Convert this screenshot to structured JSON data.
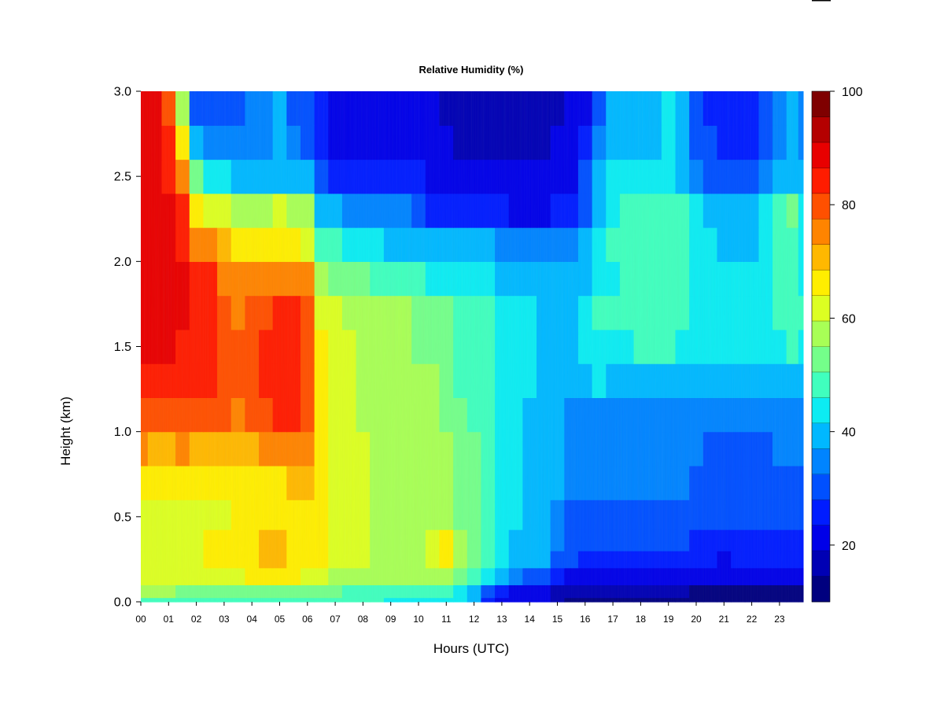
{
  "chart_data": {
    "type": "heatmap",
    "title": "Relative Humidity (%)",
    "xlabel": "Hours (UTC)",
    "ylabel": "Height (km)",
    "xlim": [
      0,
      23.85
    ],
    "ylim": [
      0,
      3
    ],
    "x_tick_labels": [
      "00",
      "01",
      "02",
      "03",
      "04",
      "05",
      "06",
      "07",
      "08",
      "09",
      "10",
      "11",
      "12",
      "13",
      "14",
      "15",
      "16",
      "17",
      "18",
      "19",
      "20",
      "21",
      "22",
      "23"
    ],
    "y_tick_labels": [
      "0.0",
      "0.5",
      "1.0",
      "1.5",
      "2.0",
      "2.5",
      "3.0"
    ],
    "colorbar": {
      "min": 10,
      "max": 100,
      "step": 5,
      "tick_labels": [
        "20",
        "40",
        "60",
        "80",
        "100"
      ],
      "colors": [
        "#00007F",
        "#0000B4",
        "#0000E8",
        "#001CFF",
        "#0050FF",
        "#0084FF",
        "#00B8FF",
        "#0CECF2",
        "#40FFBE",
        "#74FF8A",
        "#A8FF56",
        "#DCFF22",
        "#FFEE00",
        "#FFB800",
        "#FF8400",
        "#FF5000",
        "#FF1C00",
        "#E80000",
        "#B40000",
        "#7F0000"
      ]
    },
    "rows_height_km": [
      0.0,
      0.05,
      0.15,
      0.25,
      0.35,
      0.5,
      0.7,
      0.9,
      1.1,
      1.3,
      1.5,
      1.7,
      1.9,
      2.1,
      2.3,
      2.5,
      2.7,
      2.9,
      3.0
    ],
    "cols_hour": [
      0,
      0.5,
      1,
      1.5,
      2,
      2.5,
      3,
      3.5,
      4,
      4.5,
      5,
      5.5,
      6,
      6.5,
      7,
      7.5,
      8,
      8.5,
      9,
      9.5,
      10,
      10.5,
      11,
      11.5,
      12,
      12.5,
      13,
      13.5,
      14,
      14.5,
      15,
      15.5,
      16,
      16.5,
      17,
      17.5,
      18,
      18.5,
      19,
      19.5,
      20,
      20.5,
      21,
      21.5,
      22,
      22.5,
      23,
      23.5,
      23.85
    ],
    "values_rh_percent": [
      [
        52,
        52,
        52,
        52,
        52,
        52,
        52,
        52,
        50,
        50,
        52,
        52,
        52,
        52,
        52,
        52,
        50,
        50,
        48,
        48,
        48,
        48,
        48,
        46,
        40,
        28,
        22,
        20,
        20,
        20,
        16,
        14,
        14,
        14,
        14,
        14,
        14,
        14,
        14,
        14,
        12,
        12,
        12,
        12,
        12,
        12,
        12,
        12,
        12
      ],
      [
        60,
        60,
        60,
        58,
        58,
        58,
        58,
        58,
        56,
        56,
        56,
        56,
        56,
        56,
        56,
        54,
        54,
        52,
        52,
        50,
        50,
        50,
        50,
        48,
        42,
        30,
        26,
        24,
        24,
        24,
        18,
        16,
        16,
        16,
        16,
        16,
        16,
        16,
        16,
        16,
        14,
        14,
        14,
        14,
        14,
        14,
        14,
        14,
        14
      ],
      [
        66,
        66,
        66,
        66,
        66,
        66,
        66,
        68,
        70,
        70,
        70,
        70,
        68,
        66,
        64,
        62,
        62,
        60,
        60,
        60,
        60,
        62,
        62,
        56,
        50,
        46,
        40,
        36,
        34,
        32,
        28,
        24,
        22,
        22,
        22,
        20,
        22,
        22,
        22,
        22,
        20,
        20,
        20,
        20,
        22,
        22,
        22,
        22,
        22
      ],
      [
        68,
        68,
        68,
        68,
        68,
        70,
        70,
        72,
        74,
        76,
        76,
        74,
        72,
        70,
        68,
        66,
        66,
        64,
        62,
        62,
        64,
        66,
        72,
        60,
        56,
        52,
        48,
        44,
        42,
        40,
        34,
        30,
        28,
        28,
        28,
        28,
        28,
        28,
        28,
        28,
        26,
        26,
        24,
        26,
        26,
        26,
        26,
        26,
        26
      ],
      [
        68,
        68,
        68,
        68,
        68,
        70,
        70,
        72,
        74,
        76,
        76,
        74,
        74,
        70,
        68,
        66,
        66,
        64,
        62,
        62,
        62,
        66,
        70,
        60,
        56,
        52,
        48,
        44,
        42,
        40,
        36,
        32,
        30,
        30,
        30,
        30,
        30,
        30,
        30,
        30,
        28,
        28,
        26,
        28,
        28,
        28,
        28,
        28,
        28
      ],
      [
        68,
        68,
        68,
        68,
        68,
        68,
        68,
        70,
        70,
        72,
        72,
        72,
        72,
        70,
        66,
        66,
        66,
        64,
        62,
        62,
        62,
        62,
        64,
        58,
        56,
        52,
        48,
        46,
        44,
        42,
        38,
        34,
        34,
        34,
        34,
        34,
        34,
        34,
        34,
        34,
        32,
        30,
        30,
        32,
        32,
        32,
        32,
        32,
        32
      ],
      [
        70,
        70,
        72,
        72,
        72,
        72,
        70,
        72,
        72,
        74,
        74,
        76,
        76,
        72,
        68,
        66,
        66,
        64,
        62,
        62,
        60,
        60,
        60,
        56,
        56,
        52,
        48,
        46,
        44,
        44,
        40,
        36,
        36,
        36,
        36,
        36,
        36,
        36,
        36,
        36,
        34,
        32,
        32,
        34,
        34,
        34,
        34,
        34,
        34
      ],
      [
        80,
        78,
        78,
        80,
        78,
        76,
        76,
        76,
        78,
        80,
        82,
        82,
        80,
        70,
        68,
        66,
        66,
        64,
        62,
        62,
        60,
        60,
        60,
        56,
        56,
        52,
        48,
        46,
        44,
        44,
        40,
        38,
        38,
        38,
        36,
        36,
        36,
        36,
        36,
        36,
        36,
        34,
        34,
        34,
        34,
        34,
        36,
        36,
        36
      ],
      [
        86,
        86,
        86,
        86,
        86,
        86,
        86,
        84,
        86,
        88,
        90,
        90,
        86,
        70,
        68,
        66,
        64,
        62,
        62,
        60,
        60,
        60,
        58,
        56,
        54,
        52,
        48,
        46,
        44,
        44,
        40,
        38,
        38,
        38,
        38,
        38,
        38,
        38,
        38,
        38,
        38,
        36,
        36,
        36,
        36,
        36,
        38,
        38,
        38
      ],
      [
        92,
        92,
        92,
        90,
        90,
        90,
        88,
        86,
        88,
        90,
        94,
        92,
        88,
        70,
        68,
        66,
        64,
        62,
        62,
        60,
        60,
        60,
        58,
        54,
        54,
        50,
        48,
        46,
        46,
        44,
        42,
        42,
        44,
        46,
        44,
        44,
        44,
        44,
        44,
        44,
        42,
        42,
        42,
        42,
        42,
        42,
        44,
        44,
        44
      ],
      [
        96,
        96,
        96,
        94,
        92,
        92,
        88,
        86,
        88,
        90,
        94,
        92,
        88,
        70,
        68,
        66,
        64,
        62,
        62,
        60,
        58,
        58,
        58,
        54,
        54,
        50,
        48,
        46,
        46,
        44,
        42,
        44,
        46,
        48,
        48,
        48,
        50,
        50,
        50,
        48,
        46,
        46,
        46,
        46,
        46,
        46,
        48,
        52,
        48
      ],
      [
        98,
        98,
        98,
        96,
        94,
        92,
        88,
        84,
        86,
        88,
        90,
        90,
        86,
        68,
        66,
        64,
        62,
        62,
        60,
        60,
        58,
        56,
        56,
        52,
        52,
        50,
        48,
        46,
        46,
        44,
        42,
        44,
        46,
        50,
        50,
        50,
        52,
        52,
        52,
        50,
        48,
        48,
        48,
        48,
        48,
        48,
        50,
        52,
        50
      ],
      [
        98,
        98,
        98,
        96,
        92,
        90,
        84,
        80,
        80,
        80,
        82,
        82,
        80,
        60,
        58,
        56,
        56,
        54,
        54,
        54,
        50,
        48,
        48,
        48,
        48,
        46,
        44,
        42,
        42,
        40,
        40,
        42,
        44,
        48,
        48,
        50,
        52,
        54,
        54,
        50,
        48,
        46,
        46,
        46,
        46,
        48,
        50,
        50,
        48
      ],
      [
        98,
        98,
        98,
        94,
        84,
        80,
        76,
        72,
        72,
        72,
        74,
        72,
        68,
        52,
        50,
        48,
        46,
        46,
        44,
        44,
        42,
        40,
        40,
        40,
        40,
        40,
        38,
        38,
        38,
        36,
        36,
        38,
        42,
        48,
        50,
        50,
        52,
        54,
        54,
        52,
        48,
        46,
        44,
        44,
        44,
        48,
        50,
        52,
        48
      ],
      [
        98,
        98,
        96,
        90,
        72,
        68,
        66,
        64,
        64,
        64,
        66,
        64,
        62,
        42,
        40,
        38,
        36,
        36,
        36,
        36,
        32,
        28,
        28,
        28,
        28,
        28,
        26,
        24,
        24,
        24,
        26,
        28,
        34,
        44,
        48,
        50,
        52,
        54,
        54,
        52,
        46,
        42,
        40,
        40,
        40,
        46,
        50,
        56,
        48
      ],
      [
        96,
        96,
        94,
        82,
        56,
        48,
        46,
        44,
        42,
        42,
        44,
        42,
        40,
        30,
        28,
        26,
        26,
        26,
        26,
        28,
        26,
        24,
        24,
        22,
        22,
        22,
        22,
        20,
        20,
        20,
        22,
        24,
        30,
        40,
        46,
        46,
        48,
        48,
        48,
        44,
        38,
        34,
        32,
        32,
        32,
        38,
        40,
        44,
        42
      ],
      [
        98,
        96,
        90,
        70,
        40,
        36,
        36,
        36,
        38,
        38,
        40,
        36,
        34,
        26,
        24,
        22,
        22,
        22,
        22,
        24,
        22,
        20,
        20,
        18,
        18,
        18,
        18,
        18,
        18,
        18,
        20,
        22,
        26,
        36,
        42,
        42,
        44,
        44,
        46,
        40,
        34,
        30,
        28,
        28,
        28,
        34,
        38,
        42,
        38
      ],
      [
        98,
        96,
        88,
        62,
        34,
        30,
        30,
        32,
        36,
        36,
        40,
        34,
        32,
        26,
        22,
        20,
        20,
        20,
        22,
        24,
        22,
        20,
        18,
        16,
        16,
        16,
        16,
        16,
        16,
        16,
        18,
        20,
        24,
        34,
        42,
        42,
        44,
        44,
        48,
        40,
        32,
        28,
        26,
        26,
        26,
        32,
        38,
        44,
        38
      ],
      [
        98,
        96,
        86,
        60,
        32,
        30,
        30,
        32,
        36,
        36,
        40,
        34,
        32,
        26,
        22,
        20,
        20,
        20,
        22,
        24,
        22,
        20,
        18,
        16,
        16,
        16,
        16,
        16,
        16,
        16,
        18,
        20,
        24,
        34,
        42,
        42,
        44,
        44,
        48,
        40,
        32,
        28,
        26,
        26,
        26,
        32,
        38,
        44,
        38
      ]
    ]
  }
}
